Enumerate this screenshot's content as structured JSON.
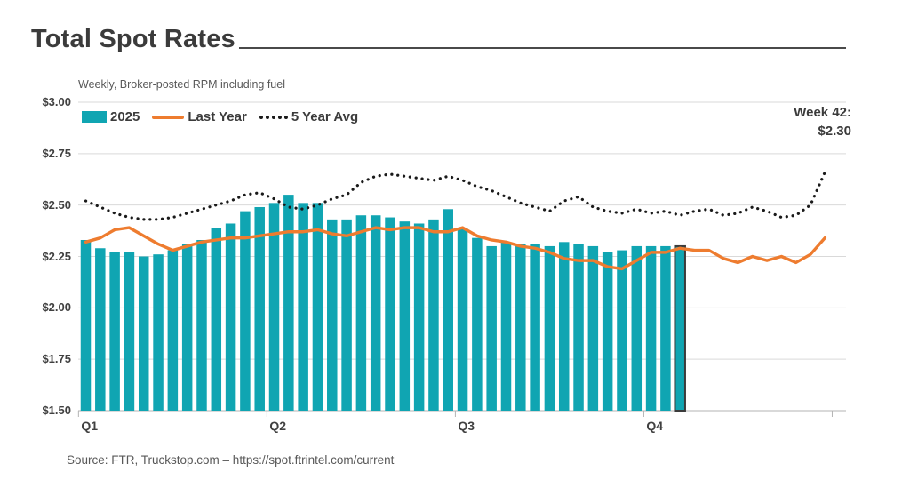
{
  "title": "Total Spot Rates",
  "subtitle": "Weekly, Broker-posted RPM including fuel",
  "annotation": {
    "line1": "Week 42:",
    "line2": "$2.30"
  },
  "source": "Source: FTR, Truckstop.com – https://spot.ftrintel.com/current",
  "legend": [
    {
      "label": "2025",
      "type": "bar"
    },
    {
      "label": "Last Year",
      "type": "line"
    },
    {
      "label": "5 Year Avg",
      "type": "dotted"
    }
  ],
  "colors": {
    "bars": "#10a5b2",
    "last_year": "#ee7c2f",
    "five_year_avg": "#1a1a1a",
    "highlight_border": "#3b3b3b",
    "gridline": "#d9d9d9",
    "axis": "#b3b3b3"
  },
  "chart_data": {
    "type": "combo-bar-line",
    "title": "Total Spot Rates",
    "subtitle": "Weekly, Broker-posted RPM including fuel",
    "unit": "USD per mile (RPM including fuel)",
    "y_axis": {
      "min": 1.5,
      "max": 3.0,
      "step": 0.25,
      "tick_labels": [
        "$1.50",
        "$1.75",
        "$2.00",
        "$2.25",
        "$2.50",
        "$2.75",
        "$3.00"
      ],
      "grid": true
    },
    "x_axis": {
      "labels": [
        "Q1",
        "Q2",
        "Q3",
        "Q4"
      ],
      "label_boundary_weeks": [
        1,
        14,
        27,
        40
      ],
      "tick_boundary_weeks": [
        1,
        14,
        27,
        40,
        53
      ],
      "weeks_total": 52
    },
    "highlight": {
      "week": 42,
      "value": 2.3,
      "label": "Week 42: $2.30"
    },
    "series": [
      {
        "name": "2025",
        "type": "bar",
        "values": [
          2.33,
          2.29,
          2.27,
          2.27,
          2.25,
          2.26,
          2.28,
          2.31,
          2.33,
          2.39,
          2.41,
          2.47,
          2.49,
          2.51,
          2.55,
          2.51,
          2.51,
          2.43,
          2.43,
          2.45,
          2.45,
          2.44,
          2.42,
          2.41,
          2.43,
          2.48,
          2.39,
          2.34,
          2.3,
          2.32,
          2.31,
          2.31,
          2.3,
          2.32,
          2.31,
          2.3,
          2.27,
          2.28,
          2.3,
          2.3,
          2.3,
          2.3
        ]
      },
      {
        "name": "Last Year",
        "type": "line",
        "values": [
          2.32,
          2.34,
          2.38,
          2.39,
          2.35,
          2.31,
          2.28,
          2.3,
          2.32,
          2.33,
          2.34,
          2.34,
          2.35,
          2.36,
          2.37,
          2.37,
          2.38,
          2.36,
          2.35,
          2.37,
          2.39,
          2.38,
          2.39,
          2.39,
          2.37,
          2.37,
          2.39,
          2.35,
          2.33,
          2.32,
          2.3,
          2.29,
          2.27,
          2.24,
          2.23,
          2.23,
          2.2,
          2.19,
          2.23,
          2.27,
          2.27,
          2.29,
          2.28,
          2.28,
          2.24,
          2.22,
          2.25,
          2.23,
          2.25,
          2.22,
          2.26,
          2.34
        ]
      },
      {
        "name": "5 Year Avg",
        "type": "dotted-line",
        "values": [
          2.52,
          2.49,
          2.46,
          2.44,
          2.43,
          2.43,
          2.44,
          2.46,
          2.48,
          2.5,
          2.52,
          2.55,
          2.56,
          2.53,
          2.49,
          2.48,
          2.5,
          2.53,
          2.55,
          2.61,
          2.64,
          2.65,
          2.64,
          2.63,
          2.62,
          2.64,
          2.62,
          2.59,
          2.57,
          2.54,
          2.51,
          2.49,
          2.47,
          2.52,
          2.54,
          2.49,
          2.47,
          2.46,
          2.48,
          2.46,
          2.47,
          2.45,
          2.47,
          2.48,
          2.45,
          2.46,
          2.49,
          2.47,
          2.44,
          2.45,
          2.5,
          2.66
        ]
      }
    ]
  }
}
